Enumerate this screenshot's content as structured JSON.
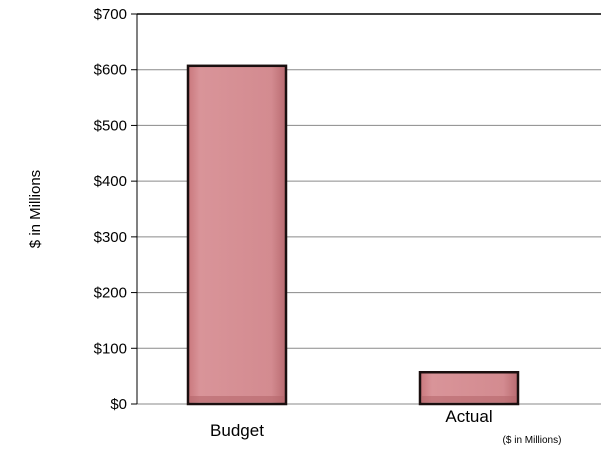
{
  "chart_data": {
    "type": "bar",
    "categories": [
      "Budget",
      "Actual"
    ],
    "values": [
      607,
      57
    ],
    "ylabel": "$ in Millions",
    "ylim": [
      0,
      700
    ],
    "yticks": [
      0,
      100,
      200,
      300,
      400,
      500,
      600,
      700
    ],
    "ytick_labels": [
      "$0",
      "$100",
      "$200",
      "$300",
      "$400",
      "$500",
      "$600",
      "$700"
    ],
    "grid": true,
    "legend": "none",
    "annotation": "($ in Millions)",
    "bar_color": "#d48f93"
  }
}
